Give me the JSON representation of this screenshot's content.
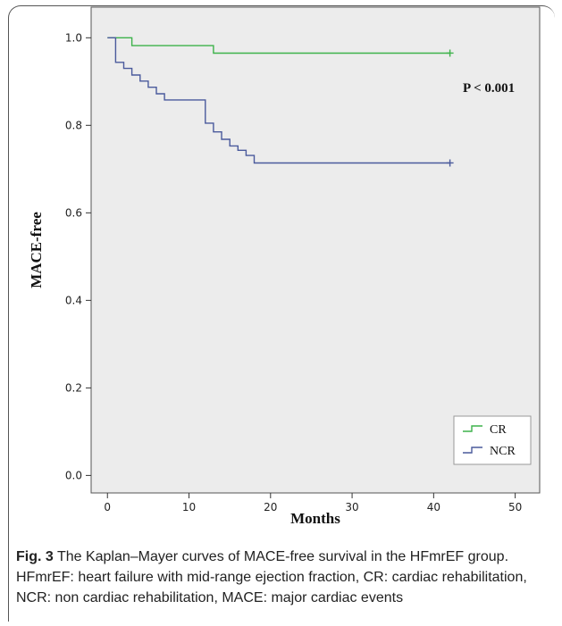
{
  "chart_data": {
    "type": "line",
    "step": true,
    "xlabel": "Months",
    "ylabel": "MACE-free",
    "xlim": [
      -2,
      53
    ],
    "ylim": [
      -0.04,
      1.07
    ],
    "xticks": [
      0,
      10,
      20,
      30,
      40,
      50
    ],
    "yticks": [
      0.0,
      0.2,
      0.4,
      0.6,
      0.8,
      1.0
    ],
    "ytick_labels": [
      "0.0",
      "0.2",
      "0.4",
      "0.6",
      "0.8",
      "1.0"
    ],
    "xtick_labels": [
      "0",
      "10",
      "20",
      "30",
      "40",
      "50"
    ],
    "background": "#ececec",
    "grid": false,
    "legend_position": "bottom-right",
    "annotation": "P < 0.001",
    "series": [
      {
        "name": "CR",
        "color": "#3db24a",
        "x": [
          0,
          3,
          3,
          13,
          13,
          42
        ],
        "y": [
          1.0,
          1.0,
          0.982,
          0.982,
          0.965,
          0.965
        ],
        "censor": [
          [
            42,
            0.965
          ]
        ]
      },
      {
        "name": "NCR",
        "color": "#4a5a9c",
        "x": [
          0,
          1,
          1,
          2,
          2,
          3,
          3,
          4,
          4,
          5,
          5,
          6,
          6,
          7,
          7,
          10,
          10,
          12,
          12,
          13,
          13,
          14,
          14,
          15,
          15,
          16,
          16,
          17,
          17,
          18,
          18,
          42
        ],
        "y": [
          1.0,
          1.0,
          0.944,
          0.944,
          0.93,
          0.93,
          0.915,
          0.915,
          0.901,
          0.901,
          0.887,
          0.887,
          0.872,
          0.872,
          0.858,
          0.858,
          0.858,
          0.858,
          0.805,
          0.805,
          0.785,
          0.785,
          0.768,
          0.768,
          0.753,
          0.753,
          0.743,
          0.743,
          0.731,
          0.731,
          0.714,
          0.714
        ],
        "censor": [
          [
            42,
            0.714
          ]
        ]
      }
    ]
  },
  "caption": {
    "label": "Fig. 3",
    "text": "  The Kaplan–Mayer curves of MACE-free survival in the HFmrEF group. HFmrEF: heart failure with mid-range ejection fraction, CR: cardiac rehabilitation, NCR: non cardiac rehabilitation, MACE: major cardiac events"
  }
}
